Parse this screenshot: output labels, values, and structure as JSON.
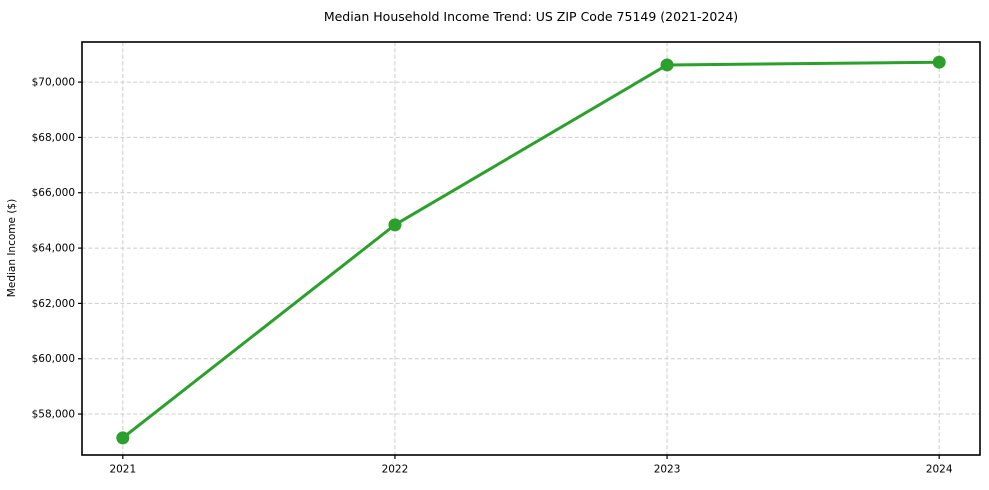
{
  "figure": {
    "background": "#ffffff"
  },
  "chart_data": {
    "type": "line",
    "title": "Median Household Income Trend: US ZIP Code 75149 (2021-2024)",
    "xlabel": "",
    "ylabel": "Median Income ($)",
    "categories": [
      "2021",
      "2022",
      "2023",
      "2024"
    ],
    "values": [
      57140,
      64840,
      70620,
      70720
    ],
    "yticks": [
      58000,
      60000,
      62000,
      64000,
      66000,
      68000,
      70000
    ],
    "ytick_labels": [
      "$58,000",
      "$60,000",
      "$62,000",
      "$64,000",
      "$66,000",
      "$68,000",
      "$70,000"
    ],
    "ylim": [
      56520,
      71450
    ],
    "grid": {
      "visible": true,
      "axis": "both",
      "style": "dashed",
      "color": "#cccccc"
    },
    "legend": {
      "visible": false
    },
    "line_color": "#2ca02c",
    "marker": "circle",
    "spine_color": "#000000",
    "text_color": "#000000"
  }
}
